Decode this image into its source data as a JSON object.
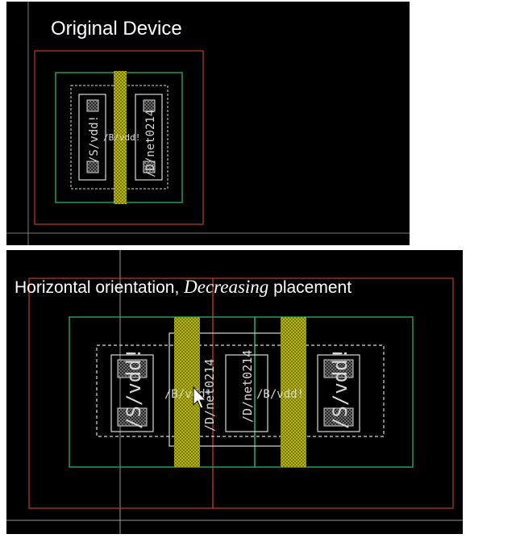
{
  "top_panel": {
    "title": "Original Device",
    "labels": {
      "source": "/S/vdd!",
      "drain": "/D/net0214",
      "gate": "/B/vdd!"
    }
  },
  "bottom_panel": {
    "title_prefix": "Horizontal orientation, ",
    "title_emphasis": "Decreasing",
    "title_suffix": " placement",
    "labels": {
      "source_left": "/S/vdd!",
      "drain_mid": "/D/net0214",
      "drain_rot": "/D/net0214",
      "source_right": "/S/vdd!",
      "gate_left": "/B/vdd!",
      "gate_right": "/B/vdd!"
    }
  },
  "colors": {
    "background": "#000000",
    "boundary": "#c0392b",
    "diffusion": "#1f9d5a",
    "poly": "#c8c800",
    "outline": "#d9d9d9",
    "guide": "#9a9a9a"
  },
  "icons": {
    "cursor": "mouse-pointer-icon"
  }
}
